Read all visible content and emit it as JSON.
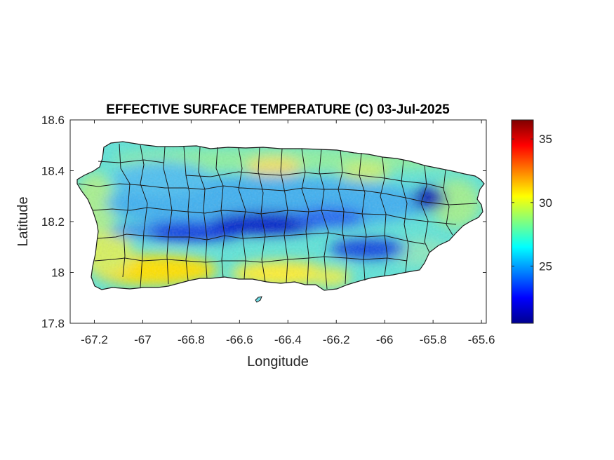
{
  "chart_data": {
    "type": "heatmap",
    "title": "EFFECTIVE SURFACE TEMPERATURE (C) 03-Jul-2025",
    "xlabel": "Longitude",
    "ylabel": "Latitude",
    "xlim": [
      -67.3,
      -65.58
    ],
    "ylim": [
      17.8,
      18.6
    ],
    "xticks": [
      -67.2,
      -67,
      -66.8,
      -66.6,
      -66.4,
      -66.2,
      -66,
      -65.8,
      -65.6
    ],
    "xtick_labels": [
      "-67.2",
      "-67",
      "-66.8",
      "-66.6",
      "-66.4",
      "-66.2",
      "-66",
      "-65.8",
      "-65.6"
    ],
    "yticks": [
      17.8,
      18,
      18.2,
      18.4,
      18.6
    ],
    "ytick_labels": [
      "17.8",
      "18",
      "18.2",
      "18.4",
      "18.6"
    ],
    "colorbar": {
      "range": [
        20.5,
        36.5
      ],
      "ticks": [
        25,
        30,
        35
      ],
      "tick_labels": [
        "25",
        "30",
        "35"
      ],
      "colormap": "jet"
    },
    "grid": false,
    "region": "Puerto Rico (municipality boundaries)",
    "field_description": [
      {
        "area": "central mountain ridge",
        "approx_value": 22
      },
      {
        "area": "northeast peak (El Yunque)",
        "approx_value": 21
      },
      {
        "area": "interior uplands",
        "approx_value": 25
      },
      {
        "area": "north coast",
        "approx_value": 28
      },
      {
        "area": "south coast",
        "approx_value": 31
      }
    ]
  }
}
